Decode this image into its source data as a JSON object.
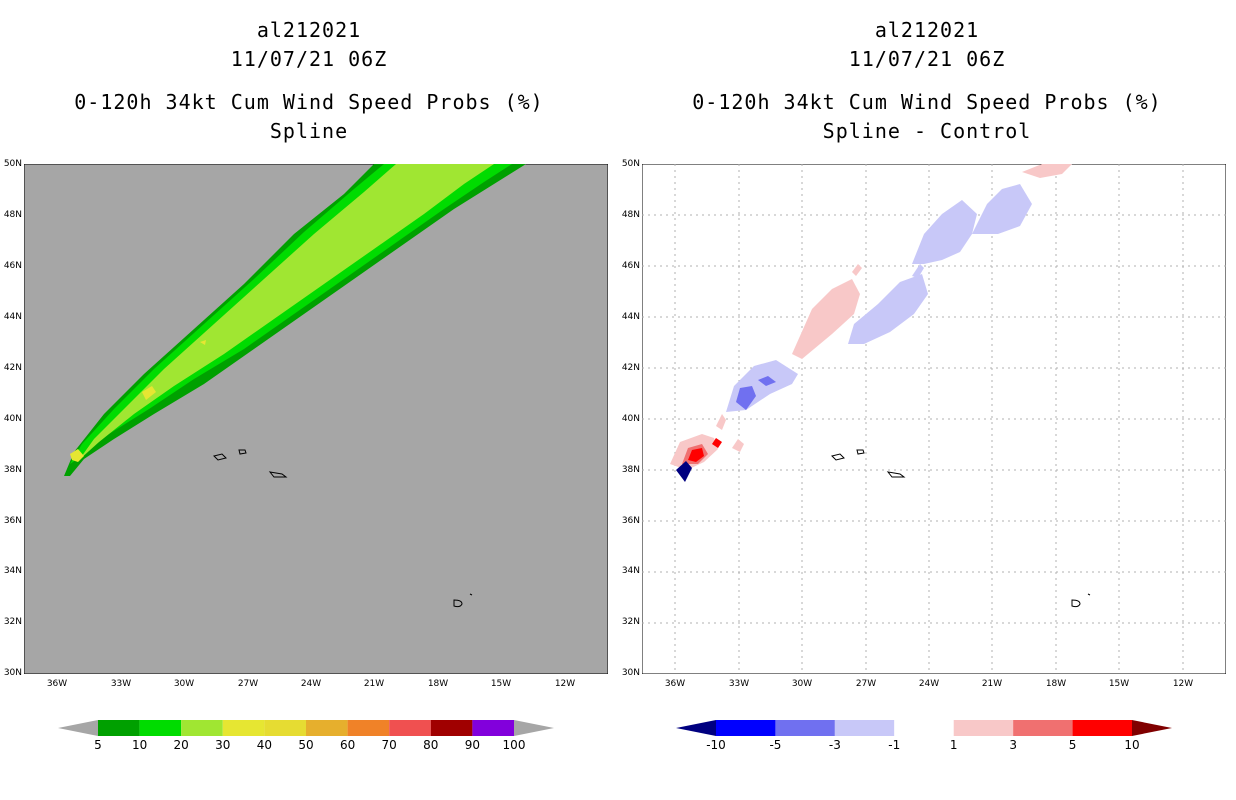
{
  "left_panel": {
    "title_line1": "al212021",
    "title_line2": "11/07/21 06Z",
    "title_line3": "0-120h 34kt Cum Wind Speed Probs (%)",
    "title_line4": "Spline"
  },
  "right_panel": {
    "title_line1": "al212021",
    "title_line2": "11/07/21 06Z",
    "title_line3": "0-120h 34kt Cum Wind Speed Probs (%)",
    "title_line4": "Spline - Control"
  },
  "lat_labels": [
    "50N",
    "48N",
    "46N",
    "44N",
    "42N",
    "40N",
    "38N",
    "36N",
    "34N",
    "32N",
    "30N"
  ],
  "lon_labels": [
    "36W",
    "33W",
    "30W",
    "27W",
    "24W",
    "21W",
    "18W",
    "15W",
    "12W"
  ],
  "left_colorbar": {
    "labels": [
      "5",
      "10",
      "20",
      "30",
      "40",
      "50",
      "60",
      "70",
      "80",
      "90",
      "100"
    ],
    "colors": [
      "#a6a6a6",
      "#00a000",
      "#00dc00",
      "#a0e632",
      "#e6e632",
      "#e6dc32",
      "#e6af2d",
      "#f08228",
      "#f05050",
      "#a00000",
      "#8200dc",
      "#a6a6a6"
    ]
  },
  "right_colorbar": {
    "labels": [
      "-10",
      "-5",
      "-3",
      "-1",
      "1",
      "3",
      "5",
      "10"
    ],
    "colors": [
      "#000080",
      "#0000ff",
      "#7070f0",
      "#c8c8f8",
      "#ffffff",
      "#f8c8c8",
      "#f07070",
      "#ff0000",
      "#800000"
    ]
  }
}
